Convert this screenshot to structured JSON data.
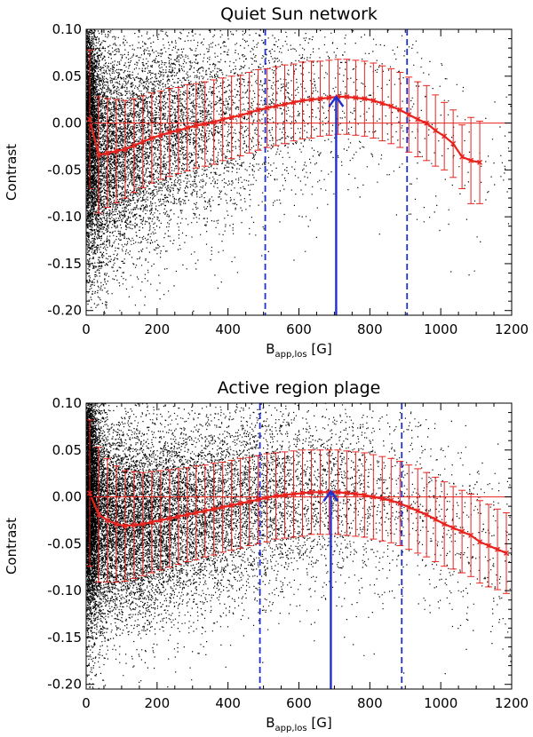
{
  "chart_data": [
    {
      "type": "scatter",
      "title": "Quiet Sun network",
      "xlabel": {
        "main": "B",
        "sub": "app,los",
        "unit": " [G]"
      },
      "ylabel": "Contrast",
      "xlim": [
        0,
        1200
      ],
      "ylim": [
        -0.205,
        0.1
      ],
      "xticks": [
        "0",
        "200",
        "400",
        "600",
        "800",
        "1000",
        "1200"
      ],
      "yticks": [
        "0.10",
        "0.05",
        "0.00",
        "-0.05",
        "-0.10",
        "-0.15",
        "-0.20"
      ],
      "zero_line": 0.0,
      "dashed_lines_x": [
        505,
        905
      ],
      "arrow": {
        "x": 705,
        "y_from": -0.205,
        "y_to": 0.028
      },
      "binned_mean": {
        "x": [
          10,
          35,
          60,
          85,
          110,
          135,
          160,
          185,
          210,
          235,
          260,
          285,
          310,
          335,
          360,
          385,
          410,
          435,
          460,
          485,
          510,
          535,
          560,
          585,
          610,
          635,
          660,
          685,
          710,
          735,
          760,
          785,
          810,
          835,
          860,
          885,
          910,
          935,
          960,
          985,
          1010,
          1035,
          1060,
          1085,
          1110
        ],
        "y": [
          0.004,
          -0.034,
          -0.032,
          -0.03,
          -0.028,
          -0.024,
          -0.02,
          -0.016,
          -0.013,
          -0.01,
          -0.008,
          -0.005,
          -0.003,
          -0.001,
          0.001,
          0.004,
          0.006,
          0.008,
          0.011,
          0.014,
          0.016,
          0.018,
          0.02,
          0.022,
          0.024,
          0.025,
          0.026,
          0.027,
          0.028,
          0.028,
          0.027,
          0.026,
          0.024,
          0.021,
          0.018,
          0.014,
          0.009,
          0.004,
          0.0,
          -0.008,
          -0.014,
          -0.022,
          -0.036,
          -0.04,
          -0.042
        ],
        "err": [
          0.074,
          0.062,
          0.058,
          0.055,
          0.052,
          0.05,
          0.049,
          0.048,
          0.047,
          0.047,
          0.046,
          0.046,
          0.045,
          0.045,
          0.045,
          0.044,
          0.044,
          0.043,
          0.043,
          0.043,
          0.042,
          0.042,
          0.042,
          0.041,
          0.041,
          0.041,
          0.04,
          0.04,
          0.04,
          0.04,
          0.04,
          0.04,
          0.04,
          0.04,
          0.04,
          0.04,
          0.04,
          0.04,
          0.04,
          0.038,
          0.036,
          0.036,
          0.034,
          0.046,
          0.044
        ]
      },
      "scatter_model": {
        "n": 11000,
        "seed": 12345,
        "dense_core_x": 18,
        "spread": 0.07,
        "density_decay_G": 230,
        "mean_curve": "binned_mean"
      },
      "colors": {
        "points": "#000000",
        "mean": "#e8231e",
        "guides": "#1f2fd0"
      }
    },
    {
      "type": "scatter",
      "title": "Active region plage",
      "xlabel": {
        "main": "B",
        "sub": "app,los",
        "unit": " [G]"
      },
      "ylabel": "Contrast",
      "xlim": [
        0,
        1200
      ],
      "ylim": [
        -0.205,
        0.1
      ],
      "xticks": [
        "0",
        "200",
        "400",
        "600",
        "800",
        "1000",
        "1200"
      ],
      "yticks": [
        "0.10",
        "0.05",
        "0.00",
        "-0.05",
        "-0.10",
        "-0.15",
        "-0.20"
      ],
      "zero_line": 0.0,
      "dashed_lines_x": [
        490,
        890
      ],
      "arrow": {
        "x": 690,
        "y_from": -0.205,
        "y_to": 0.006
      },
      "binned_mean": {
        "x": [
          10,
          35,
          60,
          85,
          110,
          135,
          160,
          185,
          210,
          235,
          260,
          285,
          310,
          335,
          360,
          385,
          410,
          435,
          460,
          485,
          510,
          535,
          560,
          585,
          610,
          635,
          660,
          685,
          710,
          735,
          760,
          785,
          810,
          835,
          860,
          885,
          910,
          935,
          960,
          985,
          1010,
          1035,
          1060,
          1085,
          1110,
          1135,
          1160,
          1185
        ],
        "y": [
          0.004,
          -0.019,
          -0.025,
          -0.029,
          -0.031,
          -0.03,
          -0.029,
          -0.027,
          -0.025,
          -0.023,
          -0.021,
          -0.019,
          -0.017,
          -0.015,
          -0.013,
          -0.011,
          -0.009,
          -0.007,
          -0.005,
          -0.003,
          -0.001,
          0.001,
          0.002,
          0.003,
          0.004,
          0.005,
          0.005,
          0.005,
          0.005,
          0.004,
          0.003,
          0.002,
          0.0,
          -0.002,
          -0.004,
          -0.007,
          -0.011,
          -0.015,
          -0.019,
          -0.024,
          -0.029,
          -0.033,
          -0.037,
          -0.041,
          -0.048,
          -0.052,
          -0.056,
          -0.06
        ],
        "err": [
          0.078,
          0.072,
          0.066,
          0.062,
          0.059,
          0.057,
          0.055,
          0.054,
          0.053,
          0.052,
          0.051,
          0.05,
          0.05,
          0.049,
          0.049,
          0.048,
          0.048,
          0.048,
          0.047,
          0.047,
          0.047,
          0.046,
          0.046,
          0.046,
          0.046,
          0.045,
          0.045,
          0.045,
          0.045,
          0.045,
          0.045,
          0.045,
          0.045,
          0.045,
          0.045,
          0.045,
          0.045,
          0.045,
          0.045,
          0.045,
          0.045,
          0.044,
          0.044,
          0.044,
          0.044,
          0.044,
          0.043,
          0.043
        ]
      },
      "scatter_model": {
        "n": 17000,
        "seed": 67890,
        "dense_core_x": 18,
        "spread": 0.065,
        "density_decay_G": 320,
        "mean_curve": "binned_mean"
      },
      "colors": {
        "points": "#000000",
        "mean": "#e8231e",
        "guides": "#1f2fd0"
      }
    }
  ]
}
